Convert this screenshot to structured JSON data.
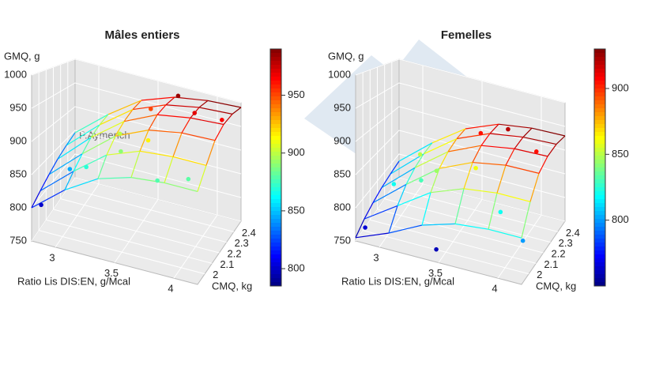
{
  "chart_data": [
    {
      "type": "surface3d",
      "title": "Mâles entiers",
      "xlabel": "Ratio Lis DIS:EN, g/Mcal",
      "ylabel": "CMQ, kg",
      "zlabel": "GMQ, g",
      "watermark": "P.Aymerich",
      "xlim": [
        2.8,
        4.2
      ],
      "xticks": [
        3.0,
        3.5,
        4.0
      ],
      "ylim": [
        1.9,
        2.5
      ],
      "yticks": [
        2.0,
        2.1,
        2.2,
        2.3,
        2.4
      ],
      "zlim": [
        750,
        1000
      ],
      "zticks": [
        750,
        800,
        850,
        900,
        950,
        1000
      ],
      "clim": [
        785,
        990
      ],
      "cticks": [
        800,
        850,
        900,
        950
      ],
      "surface": {
        "x": [
          2.8,
          3.08,
          3.36,
          3.64,
          3.92,
          4.2
        ],
        "y": [
          1.9,
          2.02,
          2.14,
          2.26,
          2.38,
          2.5
        ],
        "z": [
          [
            800,
            840,
            870,
            885,
            890,
            890
          ],
          [
            810,
            855,
            895,
            915,
            920,
            920
          ],
          [
            820,
            870,
            915,
            940,
            950,
            952
          ],
          [
            830,
            885,
            930,
            958,
            968,
            972
          ],
          [
            838,
            895,
            942,
            968,
            980,
            984
          ],
          [
            845,
            902,
            950,
            975,
            986,
            990
          ]
        ]
      },
      "points": {
        "x": [
          2.85,
          3.0,
          3.2,
          3.3,
          3.5,
          3.6,
          3.7,
          3.9,
          4.0,
          4.1,
          3.4,
          3.8
        ],
        "y": [
          1.95,
          2.1,
          2.0,
          2.3,
          2.4,
          2.2,
          2.45,
          2.35,
          2.1,
          2.4,
          2.15,
          2.0
        ],
        "z": [
          800,
          845,
          870,
          900,
          950,
          915,
          985,
          970,
          880,
          965,
          890,
          878
        ]
      }
    },
    {
      "type": "surface3d",
      "title": "Femelles",
      "xlabel": "Ratio Lis DIS:EN, g/Mcal",
      "ylabel": "CMQ, kg",
      "zlabel": "GMQ, g",
      "xlim": [
        2.8,
        4.2
      ],
      "xticks": [
        3.0,
        3.5,
        4.0
      ],
      "ylim": [
        1.9,
        2.5
      ],
      "yticks": [
        2.0,
        2.1,
        2.2,
        2.3,
        2.4
      ],
      "zlim": [
        750,
        1000
      ],
      "zticks": [
        750,
        800,
        850,
        900,
        950,
        1000
      ],
      "clim": [
        750,
        930
      ],
      "cticks": [
        800,
        850,
        900
      ],
      "surface": {
        "x": [
          2.8,
          3.08,
          3.36,
          3.64,
          3.92,
          4.2
        ],
        "y": [
          1.9,
          2.02,
          2.14,
          2.26,
          2.38,
          2.5
        ],
        "z": [
          [
            755,
            775,
            800,
            815,
            820,
            820
          ],
          [
            765,
            800,
            835,
            855,
            862,
            862
          ],
          [
            772,
            818,
            860,
            885,
            895,
            896
          ],
          [
            778,
            830,
            875,
            902,
            912,
            914
          ],
          [
            782,
            838,
            885,
            912,
            922,
            925
          ],
          [
            785,
            842,
            890,
            918,
            928,
            930
          ]
        ]
      },
      "points": {
        "x": [
          2.85,
          3.0,
          3.1,
          3.3,
          3.45,
          3.55,
          3.6,
          3.75,
          3.9,
          4.05,
          4.15,
          3.2
        ],
        "y": [
          1.95,
          2.1,
          2.3,
          2.2,
          1.95,
          2.4,
          2.25,
          2.45,
          2.1,
          2.35,
          2.0,
          2.15
        ],
        "z": [
          765,
          820,
          850,
          845,
          760,
          905,
          860,
          920,
          820,
          905,
          800,
          830
        ]
      }
    }
  ]
}
